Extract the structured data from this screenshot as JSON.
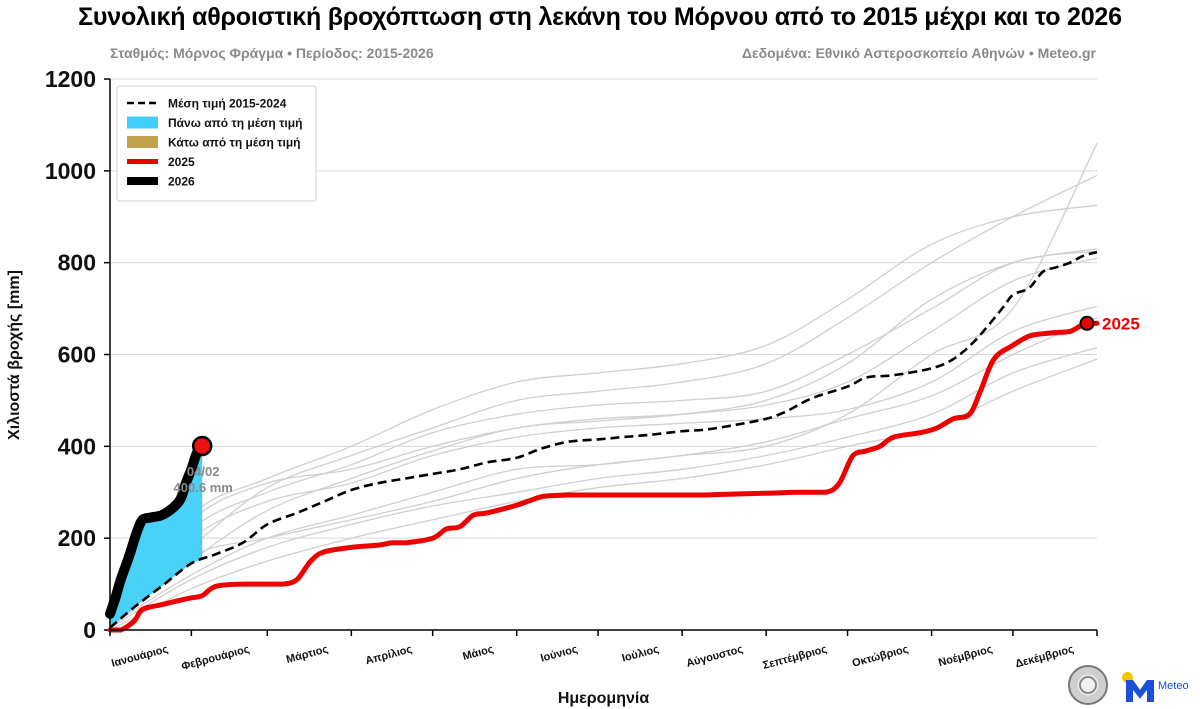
{
  "header": {
    "title": "Συνολική αθροιστική βροχόπτωση στη λεκάνη του Μόρνου από το 2015 μέχρι και το 2026",
    "subtitle_left": "Σταθμός: Μόρνος Φράγμα • Περίοδος: 2015-2026",
    "subtitle_right": "Δεδομένα: Εθνικό Αστεροσκοπείο Αθηνών • Meteo.gr"
  },
  "logos": {
    "seal_icon": "observatory-seal-icon",
    "meteo_icon": "meteo-logo-icon",
    "meteo_word": "Meteo"
  },
  "chart_data": {
    "type": "line",
    "title": "Συνολική αθροιστική βροχόπτωση στη λεκάνη του Μόρνου από το 2015 μέχρι και το 2026",
    "xlabel": "Ημερομηνία",
    "ylabel": "Χιλιοστά βροχής [mm]",
    "x_unit": "day_of_year",
    "xlim": [
      1,
      365
    ],
    "ylim": [
      0,
      1200
    ],
    "yticks": [
      0,
      200,
      400,
      600,
      800,
      1000,
      1200
    ],
    "grid": true,
    "legend_position": "top-left",
    "months": [
      {
        "label": "Ιανουάριος",
        "center_day": 16
      },
      {
        "label": "Φεβρουάριος",
        "center_day": 46
      },
      {
        "label": "Μάρτιος",
        "center_day": 75
      },
      {
        "label": "Απρίλιος",
        "center_day": 106
      },
      {
        "label": "Μάιος",
        "center_day": 136
      },
      {
        "label": "Ιούνιος",
        "center_day": 167
      },
      {
        "label": "Ιούλιος",
        "center_day": 197
      },
      {
        "label": "Αύγουστος",
        "center_day": 228
      },
      {
        "label": "Σεπτέμβριος",
        "center_day": 259
      },
      {
        "label": "Οκτώβριος",
        "center_day": 289
      },
      {
        "label": "Νοέμβριος",
        "center_day": 320
      },
      {
        "label": "Δεκέμβριος",
        "center_day": 350
      }
    ],
    "month_boundaries": [
      31,
      59,
      90,
      120,
      151,
      181,
      212,
      243,
      273,
      304,
      334
    ],
    "legend": [
      {
        "key": "mean",
        "label": "Μέση τιμή 2015-2024",
        "style": "dashed",
        "color": "#000000"
      },
      {
        "key": "above",
        "label": "Πάνω από τη μέση τιμή",
        "style": "fill",
        "color": "#3fcff8"
      },
      {
        "key": "below",
        "label": "Κάτω από τη μέση τιμή",
        "style": "fill",
        "color": "#c2a24c"
      },
      {
        "key": "y2025",
        "label": "2025",
        "style": "line",
        "color": "#ee0000"
      },
      {
        "key": "y2026",
        "label": "2026",
        "style": "line",
        "color": "#000000"
      }
    ],
    "series": [
      {
        "name": "Μέση τιμή 2015-2024",
        "key": "mean",
        "color": "#000000",
        "x": [
          1,
          10,
          20,
          31,
          40,
          50,
          59,
          70,
          80,
          90,
          100,
          110,
          120,
          130,
          140,
          151,
          160,
          170,
          181,
          190,
          200,
          212,
          220,
          230,
          243,
          250,
          260,
          273,
          280,
          290,
          304,
          312,
          320,
          330,
          334,
          340,
          345,
          350,
          355,
          360,
          365
        ],
        "y": [
          5,
          50,
          95,
          145,
          165,
          190,
          230,
          255,
          280,
          305,
          320,
          330,
          340,
          350,
          365,
          375,
          395,
          410,
          415,
          420,
          425,
          433,
          436,
          445,
          460,
          475,
          505,
          530,
          550,
          555,
          570,
          590,
          630,
          700,
          730,
          745,
          780,
          790,
          800,
          815,
          823
        ]
      },
      {
        "name": "2025",
        "key": "y2025",
        "color": "#ee0000",
        "x": [
          1,
          5,
          10,
          13,
          20,
          27,
          31,
          35,
          40,
          50,
          59,
          65,
          70,
          75,
          80,
          90,
          100,
          105,
          110,
          120,
          125,
          130,
          135,
          140,
          150,
          155,
          160,
          165,
          170,
          181,
          200,
          212,
          220,
          230,
          243,
          255,
          265,
          270,
          275,
          280,
          285,
          290,
          300,
          306,
          312,
          318,
          322,
          327,
          334,
          340,
          345,
          350,
          355,
          360,
          365
        ],
        "y": [
          0,
          0,
          20,
          45,
          55,
          65,
          70,
          75,
          95,
          100,
          100,
          100,
          110,
          150,
          170,
          180,
          185,
          190,
          190,
          200,
          220,
          225,
          250,
          255,
          270,
          280,
          290,
          293,
          294,
          294,
          294,
          294,
          294,
          296,
          298,
          300,
          300,
          320,
          380,
          390,
          400,
          420,
          430,
          440,
          460,
          470,
          520,
          590,
          620,
          640,
          645,
          648,
          650,
          665,
          668
        ]
      },
      {
        "name": "2026",
        "key": "y2026",
        "color": "#000000",
        "x": [
          1,
          3,
          5,
          8,
          11,
          13,
          16,
          20,
          24,
          27,
          29,
          31,
          33,
          35
        ],
        "y": [
          35,
          70,
          110,
          160,
          215,
          240,
          245,
          250,
          265,
          285,
          320,
          350,
          385,
          400.6
        ]
      }
    ],
    "background_years": [
      {
        "x": [
          1,
          31,
          59,
          90,
          120,
          151,
          181,
          212,
          243,
          273,
          304,
          334,
          365
        ],
        "y": [
          10,
          120,
          200,
          250,
          300,
          350,
          360,
          380,
          400,
          470,
          600,
          700,
          1060
        ]
      },
      {
        "x": [
          1,
          31,
          59,
          90,
          120,
          151,
          181,
          212,
          243,
          273,
          304,
          334,
          365
        ],
        "y": [
          20,
          180,
          310,
          380,
          440,
          500,
          520,
          540,
          580,
          680,
          800,
          900,
          990
        ]
      },
      {
        "x": [
          1,
          31,
          59,
          90,
          120,
          151,
          181,
          212,
          243,
          273,
          304,
          334,
          365
        ],
        "y": [
          15,
          250,
          330,
          400,
          480,
          540,
          560,
          580,
          620,
          720,
          840,
          900,
          925
        ]
      },
      {
        "x": [
          1,
          31,
          59,
          90,
          120,
          151,
          181,
          212,
          243,
          273,
          304,
          334,
          365
        ],
        "y": [
          5,
          150,
          260,
          330,
          390,
          440,
          455,
          470,
          500,
          580,
          720,
          800,
          830
        ]
      },
      {
        "x": [
          1,
          31,
          59,
          90,
          120,
          151,
          181,
          212,
          243,
          273,
          304,
          334,
          365
        ],
        "y": [
          30,
          200,
          280,
          320,
          380,
          420,
          440,
          450,
          460,
          480,
          540,
          650,
          705
        ]
      },
      {
        "x": [
          1,
          31,
          59,
          90,
          120,
          151,
          181,
          212,
          243,
          273,
          304,
          334,
          365
        ],
        "y": [
          10,
          160,
          200,
          240,
          280,
          330,
          360,
          380,
          410,
          460,
          510,
          600,
          680
        ]
      },
      {
        "x": [
          1,
          31,
          59,
          90,
          120,
          151,
          181,
          212,
          243,
          273,
          304,
          334,
          365
        ],
        "y": [
          5,
          110,
          180,
          230,
          270,
          300,
          330,
          350,
          380,
          420,
          470,
          560,
          615
        ]
      },
      {
        "x": [
          1,
          31,
          59,
          90,
          120,
          151,
          181,
          212,
          243,
          273,
          304,
          334,
          365
        ],
        "y": [
          0,
          90,
          150,
          200,
          240,
          280,
          310,
          330,
          360,
          400,
          440,
          520,
          590
        ]
      },
      {
        "x": [
          1,
          31,
          59,
          90,
          120,
          151,
          181,
          212,
          243,
          273,
          304,
          334,
          365
        ],
        "y": [
          25,
          220,
          300,
          360,
          430,
          470,
          490,
          500,
          520,
          600,
          700,
          800,
          825
        ]
      },
      {
        "x": [
          1,
          31,
          59,
          90,
          120,
          151,
          181,
          212,
          243,
          273,
          304,
          334,
          365
        ],
        "y": [
          40,
          240,
          320,
          350,
          400,
          440,
          460,
          470,
          490,
          540,
          650,
          760,
          810
        ]
      }
    ],
    "annotations": {
      "current_date": "04/02",
      "current_value": "400.6 mm",
      "current_day": 35,
      "current_y": 400.6,
      "end_label": "2025",
      "end_day": 365,
      "end_y": 668
    }
  }
}
